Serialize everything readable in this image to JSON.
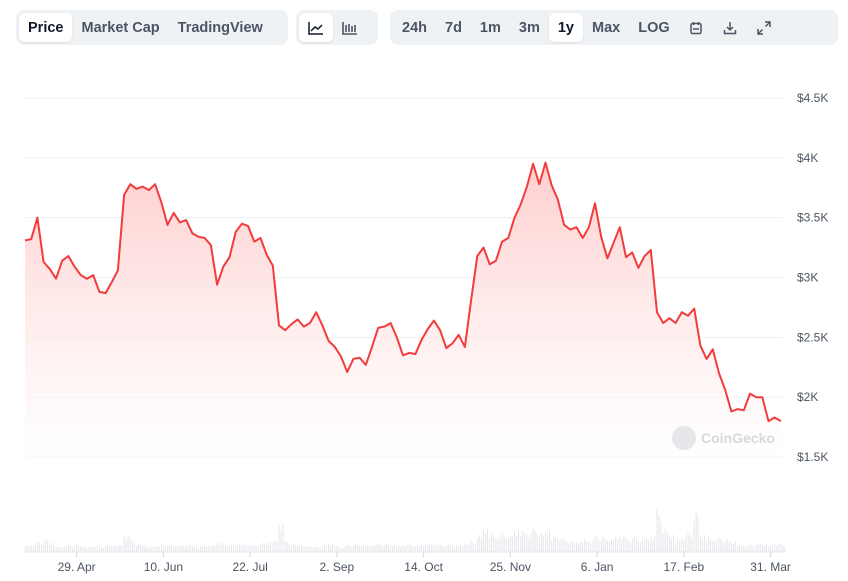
{
  "toolbar": {
    "views": [
      {
        "label": "Price",
        "active": true
      },
      {
        "label": "Market Cap",
        "active": false
      },
      {
        "label": "TradingView",
        "active": false
      }
    ],
    "chart_types": [
      {
        "icon": "line-chart-icon",
        "active": true
      },
      {
        "icon": "candlestick-chart-icon",
        "active": false
      }
    ],
    "ranges": [
      {
        "label": "24h",
        "active": false
      },
      {
        "label": "7d",
        "active": false
      },
      {
        "label": "1m",
        "active": false
      },
      {
        "label": "3m",
        "active": false
      },
      {
        "label": "1y",
        "active": true
      },
      {
        "label": "Max",
        "active": false
      },
      {
        "label": "LOG",
        "active": false
      }
    ],
    "actions": [
      {
        "icon": "calendar-icon"
      },
      {
        "icon": "download-icon"
      },
      {
        "icon": "expand-icon"
      }
    ]
  },
  "watermark": "CoinGecko",
  "colors": {
    "line": "#f23c3c",
    "fill": "#ffd9d9",
    "grid": "#eceff3",
    "volume": "#e3e6ea",
    "accent_bg": "#eff2f5"
  },
  "chart_data": {
    "type": "area",
    "ylim": [
      1500,
      4500
    ],
    "yticks": [
      1500,
      2000,
      2500,
      3000,
      3500,
      4000,
      4500
    ],
    "ytick_labels": [
      "$1.5K",
      "$2K",
      "$2.5K",
      "$3K",
      "$3.5K",
      "$4K",
      "$4.5K"
    ],
    "xlim": [
      "2024-04-04",
      "2025-04-06"
    ],
    "xticks": [
      "2024-04-29",
      "2024-06-10",
      "2024-07-22",
      "2024-09-02",
      "2024-10-14",
      "2024-11-25",
      "2025-01-06",
      "2025-02-17",
      "2025-03-31"
    ],
    "xtick_labels": [
      "29. Apr",
      "10. Jun",
      "22. Jul",
      "2. Sep",
      "14. Oct",
      "25. Nov",
      "6. Jan",
      "17. Feb",
      "31. Mar"
    ],
    "grid": true,
    "series": [
      {
        "x_start": "2024-04-04",
        "step_days": 3,
        "values": [
          3310,
          3320,
          3500,
          3130,
          3070,
          2990,
          3140,
          3180,
          3090,
          3020,
          2990,
          3020,
          2880,
          2870,
          2960,
          3060,
          3690,
          3780,
          3740,
          3760,
          3730,
          3780,
          3630,
          3440,
          3540,
          3460,
          3480,
          3370,
          3340,
          3330,
          3270,
          2940,
          3090,
          3170,
          3380,
          3450,
          3430,
          3300,
          3330,
          3190,
          3100,
          2600,
          2560,
          2610,
          2650,
          2590,
          2620,
          2710,
          2600,
          2470,
          2420,
          2340,
          2210,
          2320,
          2330,
          2270,
          2420,
          2580,
          2590,
          2620,
          2500,
          2350,
          2370,
          2360,
          2480,
          2570,
          2640,
          2560,
          2410,
          2450,
          2520,
          2420,
          2810,
          3180,
          3250,
          3110,
          3140,
          3300,
          3330,
          3500,
          3610,
          3760,
          3950,
          3780,
          3960,
          3770,
          3650,
          3440,
          3400,
          3420,
          3330,
          3420,
          3620,
          3340,
          3160,
          3290,
          3420,
          3170,
          3210,
          3080,
          3180,
          3230,
          2710,
          2620,
          2660,
          2620,
          2710,
          2680,
          2740,
          2430,
          2320,
          2400,
          2200,
          2060,
          1880,
          1900,
          1890,
          2030,
          2000,
          2000,
          1800,
          1830,
          1800
        ],
        "volume": [
          12,
          14,
          18,
          22,
          16,
          12,
          10,
          12,
          14,
          11,
          10,
          12,
          10,
          11,
          12,
          14,
          32,
          22,
          14,
          12,
          10,
          12,
          14,
          12,
          11,
          12,
          14,
          12,
          10,
          12,
          14,
          18,
          14,
          12,
          14,
          16,
          14,
          12,
          16,
          18,
          22,
          55,
          20,
          14,
          12,
          12,
          11,
          10,
          12,
          14,
          12,
          10,
          12,
          14,
          12,
          12,
          14,
          16,
          14,
          12,
          12,
          14,
          14,
          12,
          14,
          16,
          14,
          12,
          14,
          12,
          14,
          16,
          20,
          30,
          40,
          35,
          28,
          32,
          30,
          38,
          40,
          36,
          44,
          34,
          38,
          30,
          28,
          22,
          20,
          18,
          24,
          22,
          30,
          26,
          22,
          28,
          30,
          24,
          28,
          20,
          26,
          30,
          75,
          40,
          30,
          24,
          28,
          34,
          70,
          30,
          28,
          24,
          26,
          22,
          18,
          14,
          12,
          14,
          16,
          14,
          12,
          16,
          14
        ]
      }
    ]
  }
}
